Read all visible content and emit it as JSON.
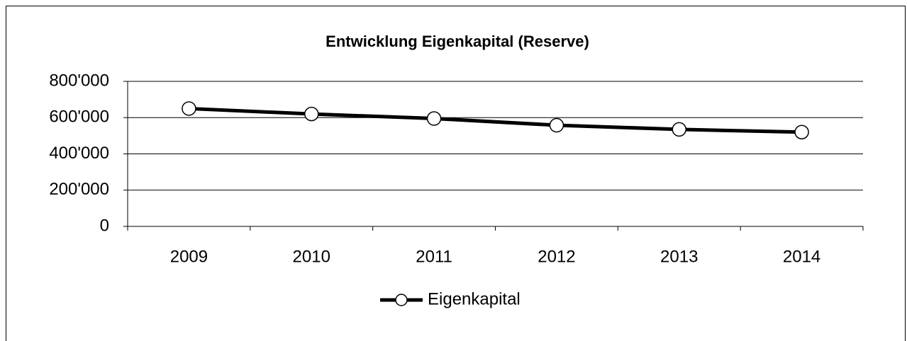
{
  "chart_data": {
    "type": "line",
    "title": "Entwicklung Eigenkapital (Reserve)",
    "categories": [
      "2009",
      "2010",
      "2011",
      "2012",
      "2013",
      "2014"
    ],
    "series": [
      {
        "name": "Eigenkapital",
        "color": "#000000",
        "values": [
          650000,
          620000,
          595000,
          558000,
          535000,
          520000
        ]
      }
    ],
    "ylim": [
      0,
      800000
    ],
    "yticks": [
      0,
      {
        "value": 200000,
        "label": "200'000"
      },
      {
        "value": 400000,
        "label": "400'000"
      },
      {
        "value": 600000,
        "label": "600'000"
      },
      {
        "value": 800000,
        "label": "800'000"
      }
    ],
    "grid": true,
    "legend": "bottom"
  }
}
